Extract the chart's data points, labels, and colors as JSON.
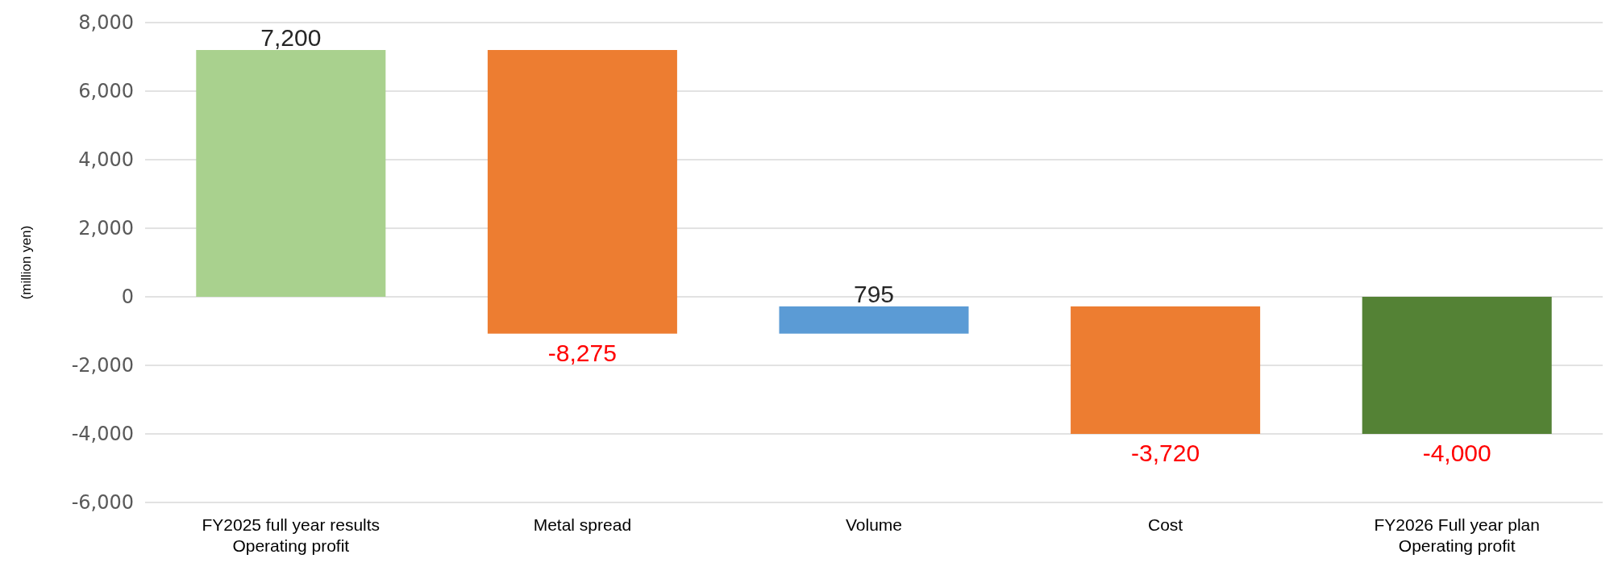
{
  "chart_data": {
    "type": "bar",
    "ylabel": "(million yen)",
    "categories": [
      "FY2025 full year results\nOperating profit",
      "Metal spread",
      "Volume",
      "Cost",
      "FY2026 Full year plan\nOperating profit"
    ],
    "base": [
      0,
      7200,
      -1075,
      -280,
      0
    ],
    "values": [
      7200,
      -8275,
      795,
      -3720,
      -4000
    ],
    "colors": [
      "#a9d18e",
      "#ed7d31",
      "#5b9bd5",
      "#ed7d31",
      "#548235"
    ],
    "value_labels": [
      "7,200",
      "-8,275",
      "795",
      "-3,720",
      "-4,000"
    ],
    "ylim": [
      -6000,
      8000
    ],
    "yticks": [
      {
        "value": -6000,
        "label": "-6,000"
      },
      {
        "value": -4000,
        "label": "-4,000"
      },
      {
        "value": -2000,
        "label": "-2,000"
      },
      0,
      {
        "value": 2000,
        "label": "2,000"
      },
      {
        "value": 4000,
        "label": "4,000"
      },
      {
        "value": 6000,
        "label": "6,000"
      },
      {
        "value": 8000,
        "label": "8,000"
      }
    ],
    "grid": "y"
  }
}
